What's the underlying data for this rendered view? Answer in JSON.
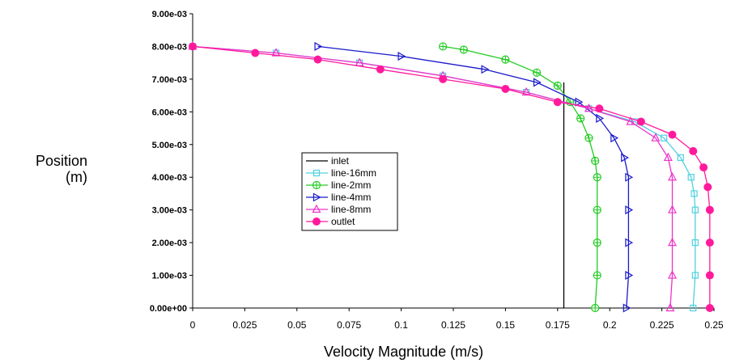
{
  "chart_data": {
    "type": "line",
    "title": "",
    "xlabel": "Velocity Magnitude (m/s)",
    "ylabel_line1": "Position",
    "ylabel_line2": "(m)",
    "xlim": [
      0,
      0.25
    ],
    "ylim": [
      0,
      0.009
    ],
    "xticks": [
      0,
      0.025,
      0.05,
      0.075,
      0.1,
      0.125,
      0.15,
      0.175,
      0.2,
      0.225,
      0.25
    ],
    "xtick_labels": [
      "0",
      "0.025",
      "0.05",
      "0.075",
      "0.1",
      "0.125",
      "0.15",
      "0.175",
      "0.2",
      "0.225",
      "0.25"
    ],
    "yticks": [
      0,
      0.001,
      0.002,
      0.003,
      0.004,
      0.005,
      0.006,
      0.007,
      0.008,
      0.009
    ],
    "ytick_labels": [
      "0.00e+00",
      "1.00e-03",
      "2.00e-03",
      "3.00e-03",
      "4.00e-03",
      "5.00e-03",
      "6.00e-03",
      "7.00e-03",
      "8.00e-03",
      "9.00e-03"
    ],
    "grid": false,
    "legend_position": "center-left",
    "series": [
      {
        "name": "inlet",
        "color": "#000000",
        "marker": "none",
        "points": [
          [
            0.178,
            0
          ],
          [
            0.178,
            0.002
          ],
          [
            0.178,
            0.004
          ],
          [
            0.178,
            0.0059
          ],
          [
            0.178,
            0.0069
          ]
        ]
      },
      {
        "name": "line-16mm",
        "color": "#4fd0e0",
        "marker": "square",
        "points": [
          [
            0.24,
            0
          ],
          [
            0.241,
            0.001
          ],
          [
            0.241,
            0.002
          ],
          [
            0.241,
            0.003
          ],
          [
            0.2405,
            0.0035
          ],
          [
            0.239,
            0.004
          ],
          [
            0.234,
            0.0046
          ],
          [
            0.226,
            0.0052
          ],
          [
            0.212,
            0.0057
          ],
          [
            0.19,
            0.0061
          ],
          [
            0.16,
            0.0066
          ],
          [
            0.12,
            0.0071
          ],
          [
            0.08,
            0.0075
          ],
          [
            0.04,
            0.0078
          ],
          [
            0,
            0.008
          ]
        ]
      },
      {
        "name": "line-2mm",
        "color": "#22cc22",
        "marker": "circle-plus",
        "points": [
          [
            0.193,
            0
          ],
          [
            0.194,
            0.001
          ],
          [
            0.194,
            0.002
          ],
          [
            0.194,
            0.003
          ],
          [
            0.194,
            0.004
          ],
          [
            0.193,
            0.0045
          ],
          [
            0.19,
            0.0052
          ],
          [
            0.186,
            0.0058
          ],
          [
            0.181,
            0.0063
          ],
          [
            0.175,
            0.0068
          ],
          [
            0.165,
            0.0072
          ],
          [
            0.15,
            0.0076
          ],
          [
            0.13,
            0.0079
          ],
          [
            0.12,
            0.008
          ]
        ]
      },
      {
        "name": "line-4mm",
        "color": "#1a1acc",
        "marker": "triangle-right",
        "points": [
          [
            0.208,
            0
          ],
          [
            0.209,
            0.001
          ],
          [
            0.209,
            0.002
          ],
          [
            0.209,
            0.003
          ],
          [
            0.209,
            0.004
          ],
          [
            0.207,
            0.0046
          ],
          [
            0.202,
            0.0052
          ],
          [
            0.195,
            0.0058
          ],
          [
            0.185,
            0.0063
          ],
          [
            0.165,
            0.0069
          ],
          [
            0.14,
            0.0073
          ],
          [
            0.1,
            0.0077
          ],
          [
            0.06,
            0.008
          ]
        ]
      },
      {
        "name": "line-8mm",
        "color": "#ee33cc",
        "marker": "triangle-up",
        "points": [
          [
            0.229,
            0
          ],
          [
            0.23,
            0.001
          ],
          [
            0.23,
            0.002
          ],
          [
            0.23,
            0.003
          ],
          [
            0.23,
            0.004
          ],
          [
            0.228,
            0.0046
          ],
          [
            0.222,
            0.0052
          ],
          [
            0.21,
            0.0057
          ],
          [
            0.19,
            0.0061
          ],
          [
            0.16,
            0.0066
          ],
          [
            0.12,
            0.0071
          ],
          [
            0.08,
            0.0075
          ],
          [
            0.04,
            0.0078
          ],
          [
            0,
            0.008
          ]
        ]
      },
      {
        "name": "outlet",
        "color": "#ff1a9c",
        "marker": "filled-circle",
        "points": [
          [
            0.248,
            0
          ],
          [
            0.248,
            0.001
          ],
          [
            0.248,
            0.002
          ],
          [
            0.248,
            0.003
          ],
          [
            0.247,
            0.0037
          ],
          [
            0.245,
            0.0043
          ],
          [
            0.24,
            0.0048
          ],
          [
            0.23,
            0.0053
          ],
          [
            0.215,
            0.0057
          ],
          [
            0.195,
            0.0061
          ],
          [
            0.175,
            0.0063
          ],
          [
            0.15,
            0.0067
          ],
          [
            0.12,
            0.007
          ],
          [
            0.09,
            0.0073
          ],
          [
            0.06,
            0.0076
          ],
          [
            0.03,
            0.0078
          ],
          [
            0,
            0.008
          ]
        ]
      }
    ]
  }
}
